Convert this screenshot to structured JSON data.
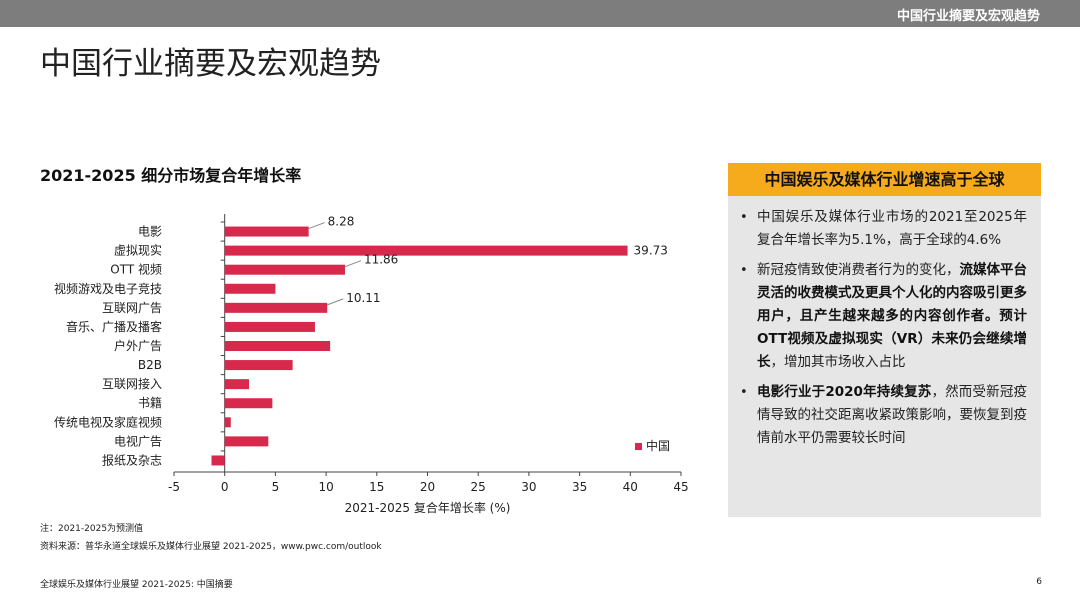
{
  "header": {
    "section_label": "中国行业摘要及宏观趋势"
  },
  "page": {
    "title": "中国行业摘要及宏观趋势"
  },
  "chart_data": {
    "type": "bar",
    "orientation": "horizontal",
    "title": "2021-2025 细分市场复合年增长率",
    "xlabel": "2021-2025 复合年增长率 (%)",
    "ylabel": "",
    "xlim": [
      -5,
      45
    ],
    "xticks": [
      -5,
      0,
      5,
      10,
      15,
      20,
      25,
      30,
      35,
      40,
      45
    ],
    "categories": [
      "电影",
      "虚拟现实",
      "OTT 视频",
      "视频游戏及电子竞技",
      "互联网广告",
      "音乐、广播及播客",
      "户外广告",
      "B2B",
      "互联网接入",
      "书籍",
      "传统电视及家庭视频",
      "电视广告",
      "报纸及杂志"
    ],
    "series": [
      {
        "name": "中国",
        "values": [
          8.28,
          39.73,
          11.86,
          5.0,
          10.11,
          8.9,
          10.4,
          6.7,
          2.4,
          4.7,
          0.6,
          4.3,
          -1.3
        ]
      }
    ],
    "data_labels": {
      "电影": "8.28",
      "虚拟现实": "39.73",
      "OTT 视频": "11.86",
      "互联网广告": "10.11"
    },
    "legend_position": "bottom-right",
    "grid": false,
    "bar_color": "#d6294c"
  },
  "notes": {
    "note": "注：2021-2025为预测值",
    "source": "资料来源：普华永道全球娱乐及媒体行业展望 2021-2025，www.pwc.com/outlook"
  },
  "footer": {
    "left": "全球娱乐及媒体行业展望 2021-2025: 中国摘要",
    "page_number": "6"
  },
  "callout": {
    "header": "中国娱乐及媒体行业增速高于全球",
    "bullet_symbol": "•",
    "bullets": [
      {
        "segments": [
          {
            "text": "中国娱乐及媒体行业市场的2021至2025年复合年增长率为5.1%，高于全球的4.6%",
            "bold": false
          }
        ]
      },
      {
        "segments": [
          {
            "text": "新冠疫情致使消费者行为的变化，",
            "bold": false
          },
          {
            "text": "流媒体平台灵活的收费模式及更具个人化的内容吸引更多用户，且产生越来越多的内容创作者。预计OTT视频及虚拟现实（VR）未来仍会继续增长",
            "bold": true
          },
          {
            "text": "，增加其市场收入占比",
            "bold": false
          }
        ]
      },
      {
        "segments": [
          {
            "text": "电影行业于2020年持续复苏",
            "bold": true
          },
          {
            "text": "，然而受新冠疫情导致的社交距离收紧政策影响，要恢复到疫情前水平仍需要较长时间",
            "bold": false
          }
        ]
      }
    ]
  }
}
